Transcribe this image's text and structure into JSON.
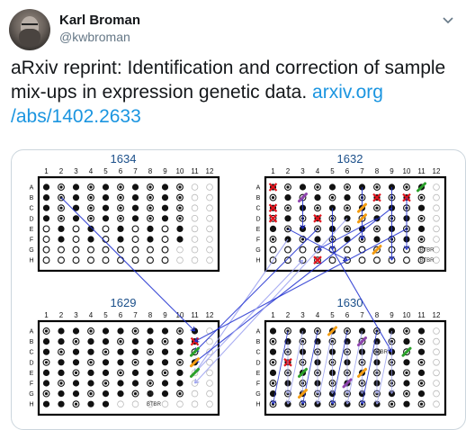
{
  "author": {
    "name": "Karl Broman",
    "handle": "@kwbroman"
  },
  "tweet": {
    "line1": "aRxiv reprint: Identification and correction of sample",
    "line2_text": "mix-ups in expression genetic data. ",
    "line2_link": "arxiv.org",
    "line3_link": "/abs/1402.2633"
  },
  "figure": {
    "plates": [
      {
        "label": "1634"
      },
      {
        "label": "1632"
      },
      {
        "label": "1629"
      },
      {
        "label": "1630"
      }
    ],
    "columns": [
      "1",
      "2",
      "3",
      "4",
      "5",
      "6",
      "7",
      "8",
      "9",
      "10",
      "11",
      "12"
    ],
    "rows": [
      "A",
      "B",
      "C",
      "D",
      "E",
      "F",
      "G",
      "H"
    ],
    "well_labels": [
      "BTBR",
      "BTBR",
      "B6",
      "BTBR",
      "BTBR"
    ],
    "colors": {
      "plate_title": "#1b4f8a",
      "arrow": "#1f2fd0",
      "arrow_light": "#9aa0f0",
      "error_mark": "#e0141d",
      "swap_green": "#2aa02a",
      "swap_orange": "#f39c12",
      "swap_purple": "#8e44ad"
    }
  }
}
